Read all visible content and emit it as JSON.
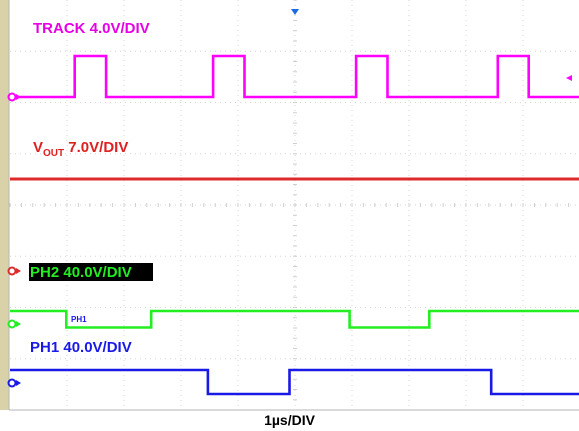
{
  "chart_data": {
    "type": "line",
    "title": "",
    "xlabel": "1µs/DIV",
    "ylabel": "",
    "x_divisions": 10,
    "y_divisions": 8,
    "grid": true,
    "series": [
      {
        "name": "TRACK",
        "label_main": "TRACK 4.0V/DIV",
        "color": "#ff00ff",
        "label_color": "#e600e6",
        "x": [
          0,
          1.38,
          1.38,
          2.05,
          2.05,
          4.33,
          4.33,
          5.0,
          5.0,
          7.38,
          7.38,
          8.05,
          8.05,
          10.4,
          10.4,
          11.06,
          11.06,
          12.6
        ],
        "y": [
          0,
          0,
          1,
          1,
          0,
          0,
          1,
          1,
          0,
          0,
          1,
          1,
          0,
          0,
          1,
          1,
          0,
          0
        ],
        "volts_per_div": 4.0
      },
      {
        "name": "VOUT",
        "label_main": "V",
        "label_sub": "OUT",
        "label_rest": " 7.0V/DIV",
        "color": "#dd2b2b",
        "label_color": "#e02020",
        "x": [
          0,
          12.6
        ],
        "y": [
          3.0,
          3.0
        ],
        "volts_per_div": 7.0
      },
      {
        "name": "PH2",
        "label_main": "PH2 40.0V/DIV",
        "color": "#22ee22",
        "label_color": "#22ee22",
        "label_bg": "#000000",
        "x": [
          0,
          1.2,
          1.2,
          3.01,
          3.01,
          7.24,
          7.24,
          8.94,
          8.94,
          12.6
        ],
        "y": [
          0,
          0,
          -0.55,
          -0.55,
          0,
          0,
          -0.55,
          -0.55,
          0,
          0
        ],
        "volts_per_div": 40.0,
        "marker": "PH1"
      },
      {
        "name": "PH1",
        "label_main": "PH1 40.0V/DIV",
        "color": "#1a1ae6",
        "label_color": "#1a1ae6",
        "x": [
          0,
          4.22,
          4.22,
          5.96,
          5.96,
          10.26,
          10.26,
          12.6
        ],
        "y": [
          0,
          0,
          -0.75,
          -0.75,
          0,
          0,
          -0.75,
          -0.75
        ],
        "volts_per_div": 40.0
      }
    ]
  },
  "timebase_label": "1µs/DIV"
}
